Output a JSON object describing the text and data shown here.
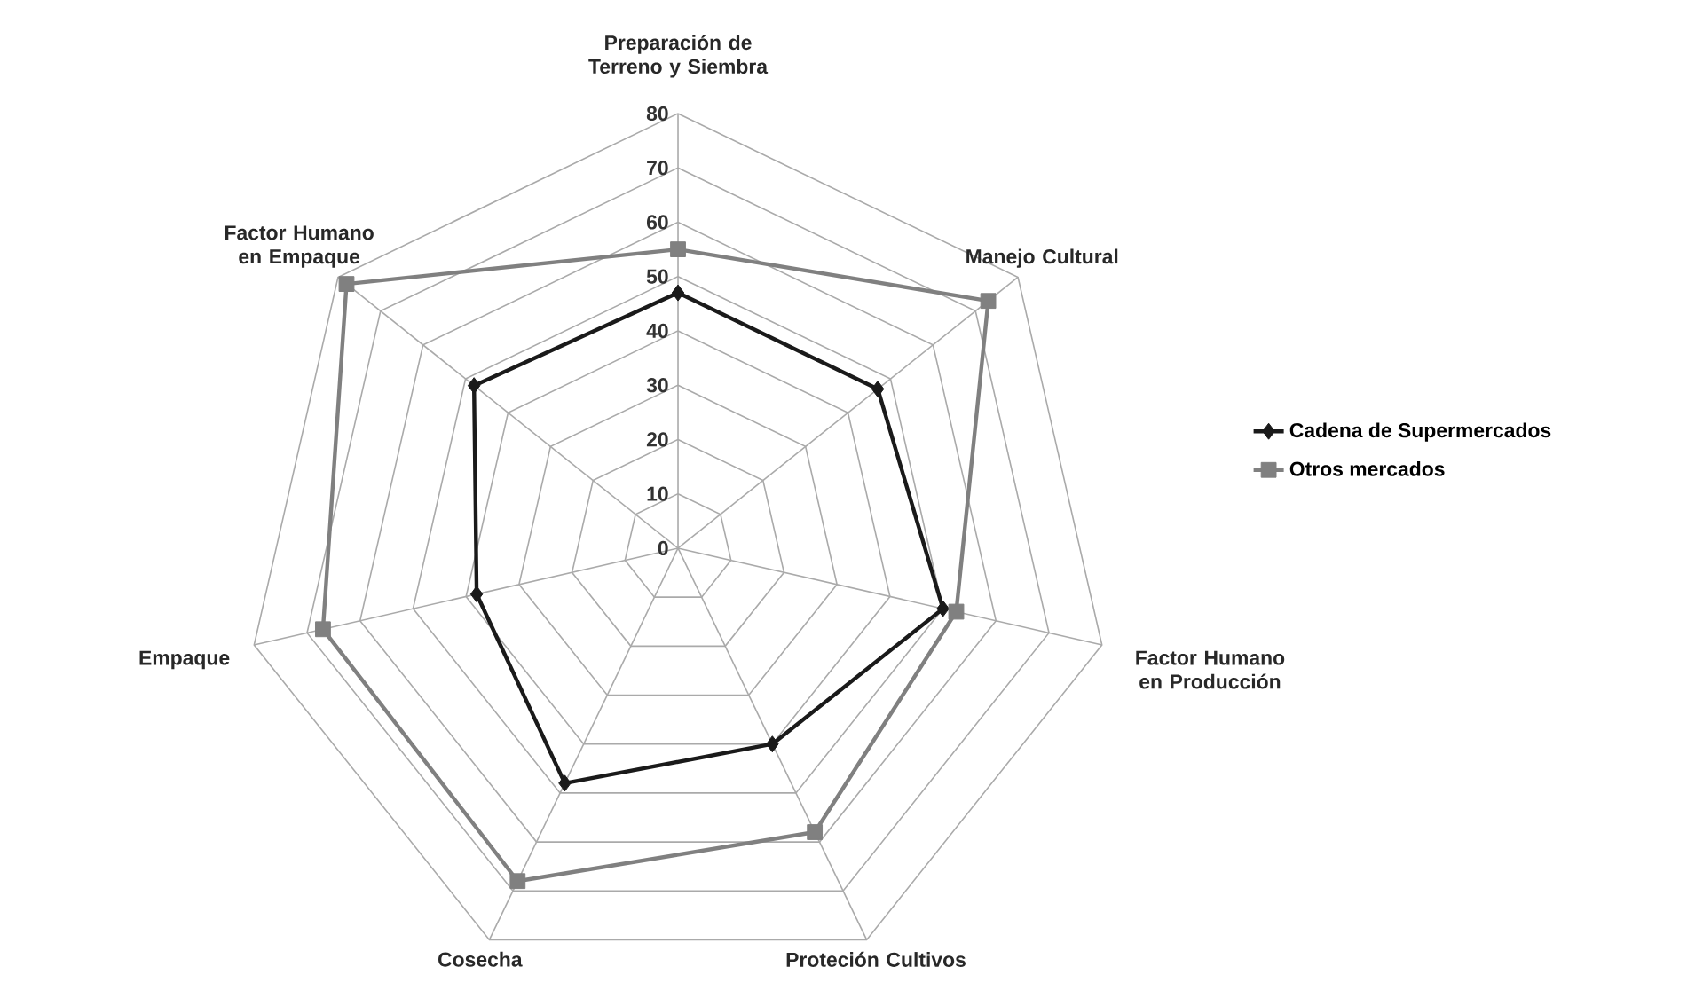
{
  "chart_data": {
    "type": "radar",
    "categories": [
      "Preparación de Terreno y Siembra",
      "Manejo Cultural",
      "Factor Humano en Producción",
      "Proteción Cultivos",
      "Cosecha",
      "Empaque",
      "Factor Humano en Empaque"
    ],
    "series": [
      {
        "name": "Cadena de Supermercados",
        "color": "#1a1a1a",
        "marker": "diamond",
        "values": [
          47,
          47,
          50,
          40,
          48,
          38,
          48
        ]
      },
      {
        "name": "Otros mercados",
        "color": "#808080",
        "marker": "square",
        "values": [
          55,
          73,
          52.5,
          58,
          68,
          67,
          78
        ]
      }
    ],
    "ylim": [
      0,
      80
    ],
    "yticks": [
      0,
      10,
      20,
      30,
      40,
      50,
      60,
      70,
      80
    ],
    "grid": true,
    "legend": "right"
  }
}
